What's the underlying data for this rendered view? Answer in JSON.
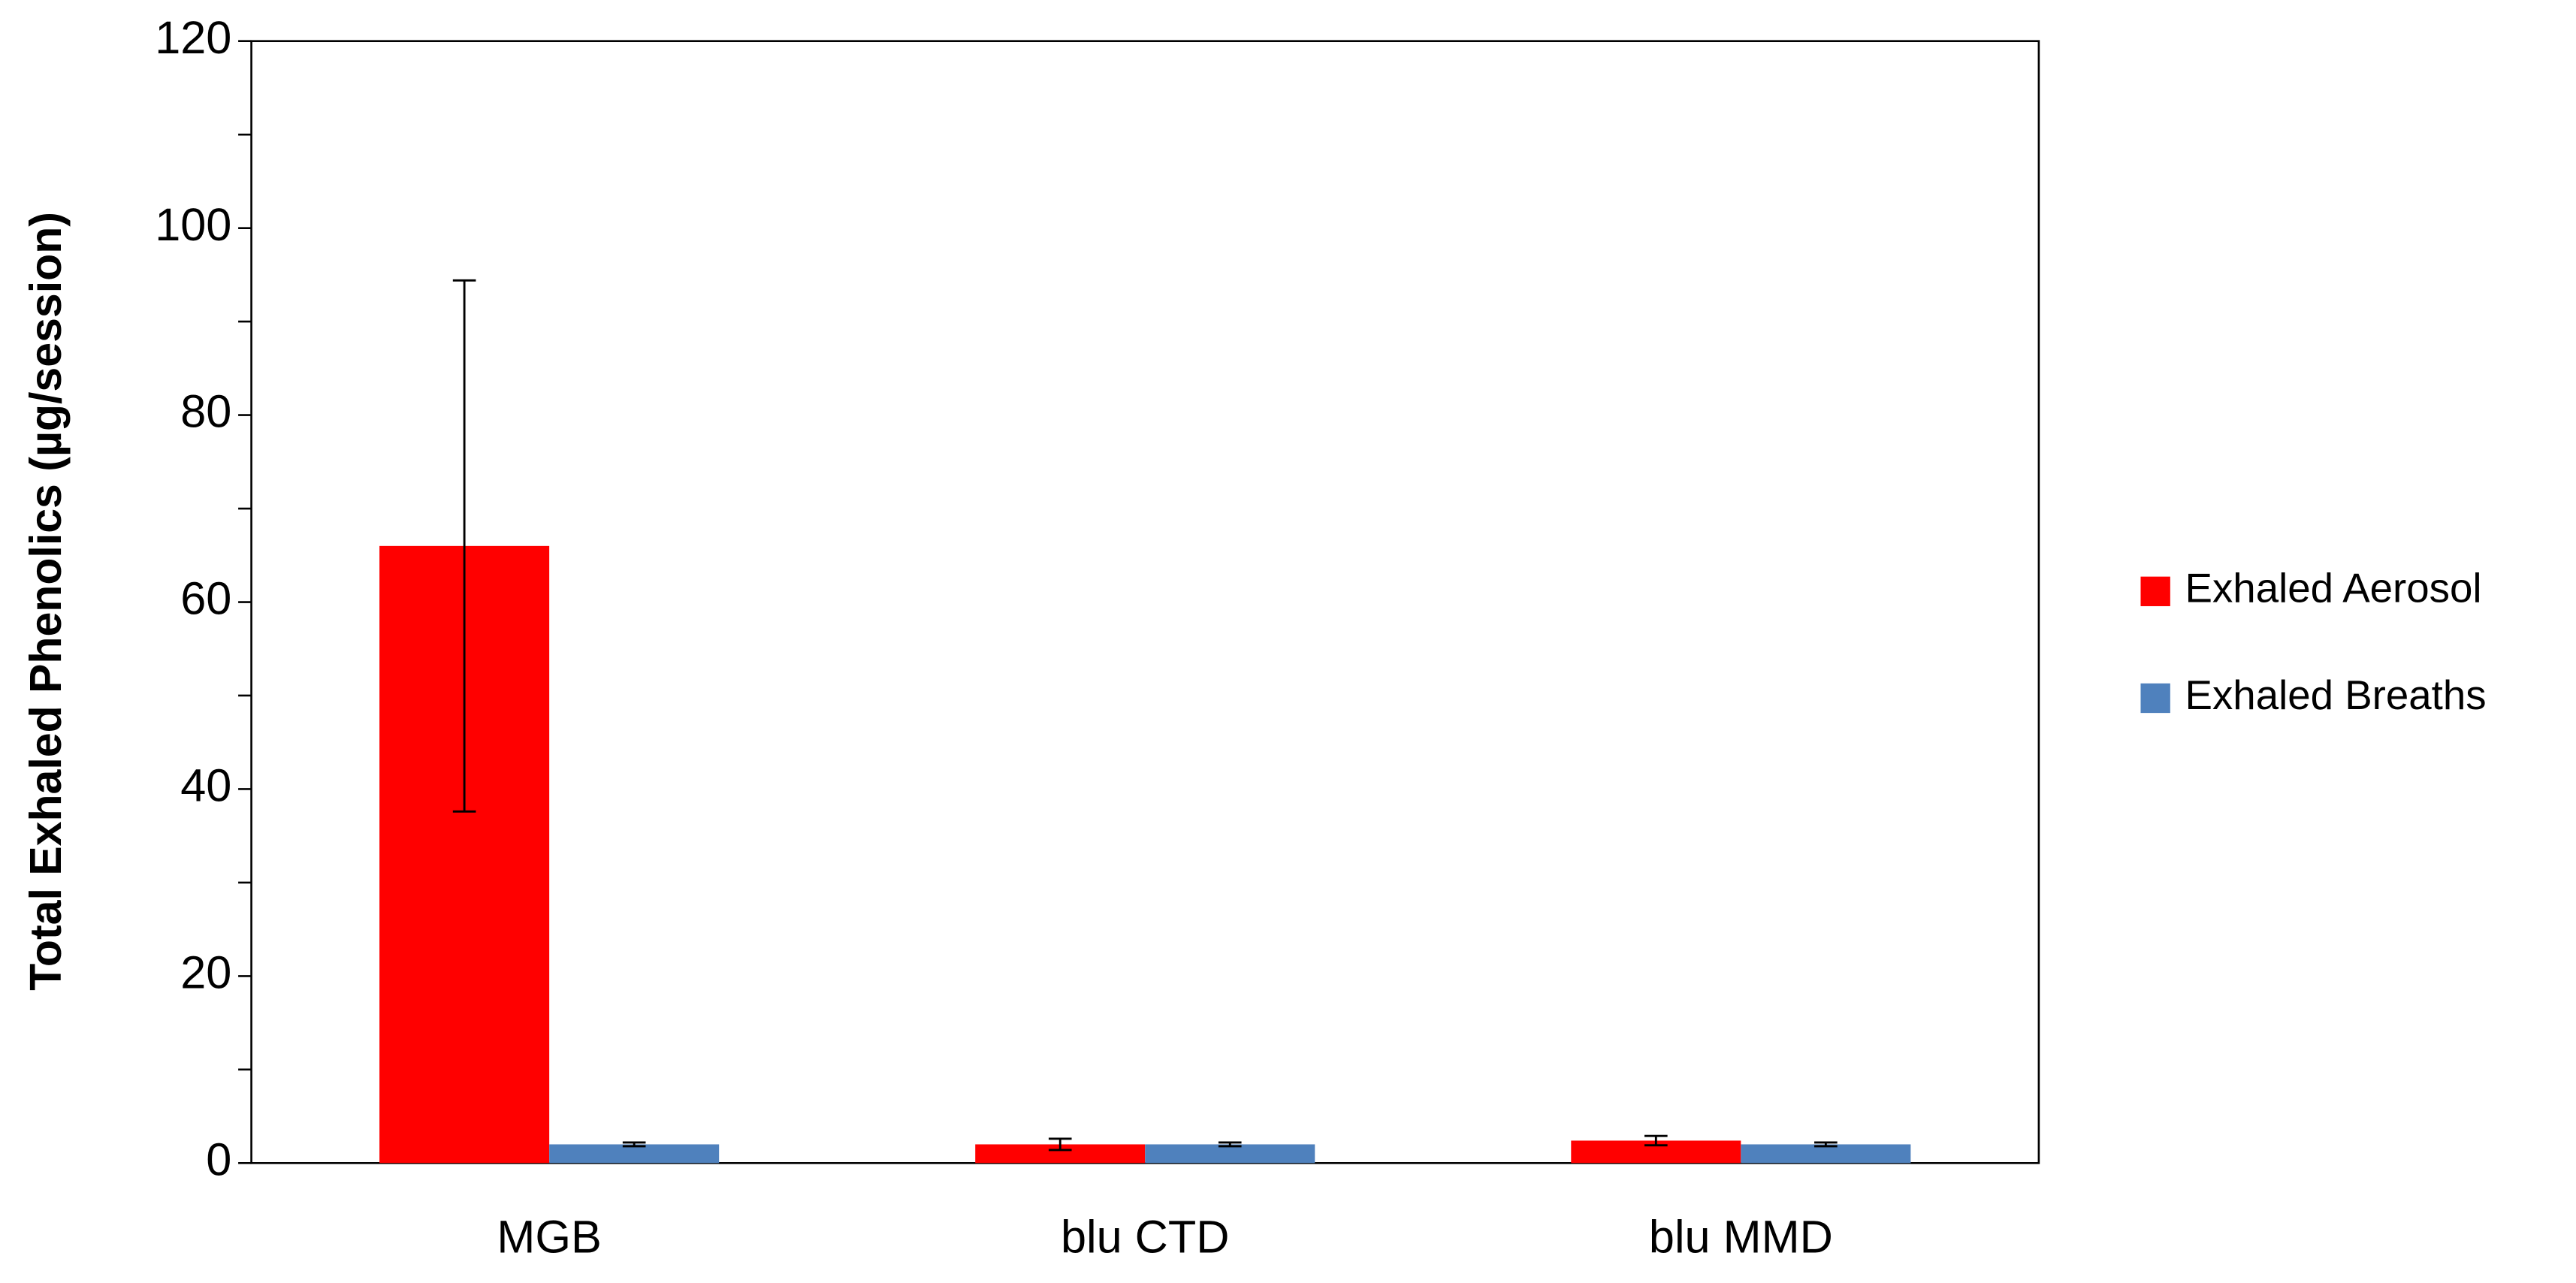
{
  "chart_data": {
    "type": "bar",
    "y_label": "Total Exhaled Phenolics (µg/session)",
    "categories": [
      "MGB",
      "blu CTD",
      "blu MMD"
    ],
    "series": [
      {
        "name": "Exhaled Aerosol",
        "color": "#ff0000",
        "values": [
          66,
          2,
          2.4
        ],
        "errors": [
          28.4,
          0.6,
          0.5
        ]
      },
      {
        "name": "Exhaled Breaths",
        "color": "#4f81bd",
        "values": [
          2,
          2,
          2
        ],
        "errors": [
          0.2,
          0.2,
          0.2
        ]
      }
    ],
    "ylim": [
      0,
      120
    ],
    "yticks": [
      0,
      20,
      40,
      60,
      80,
      100,
      120
    ],
    "yminor_ticks": [
      10,
      30,
      50,
      70,
      90,
      110
    ],
    "legend": "right"
  }
}
